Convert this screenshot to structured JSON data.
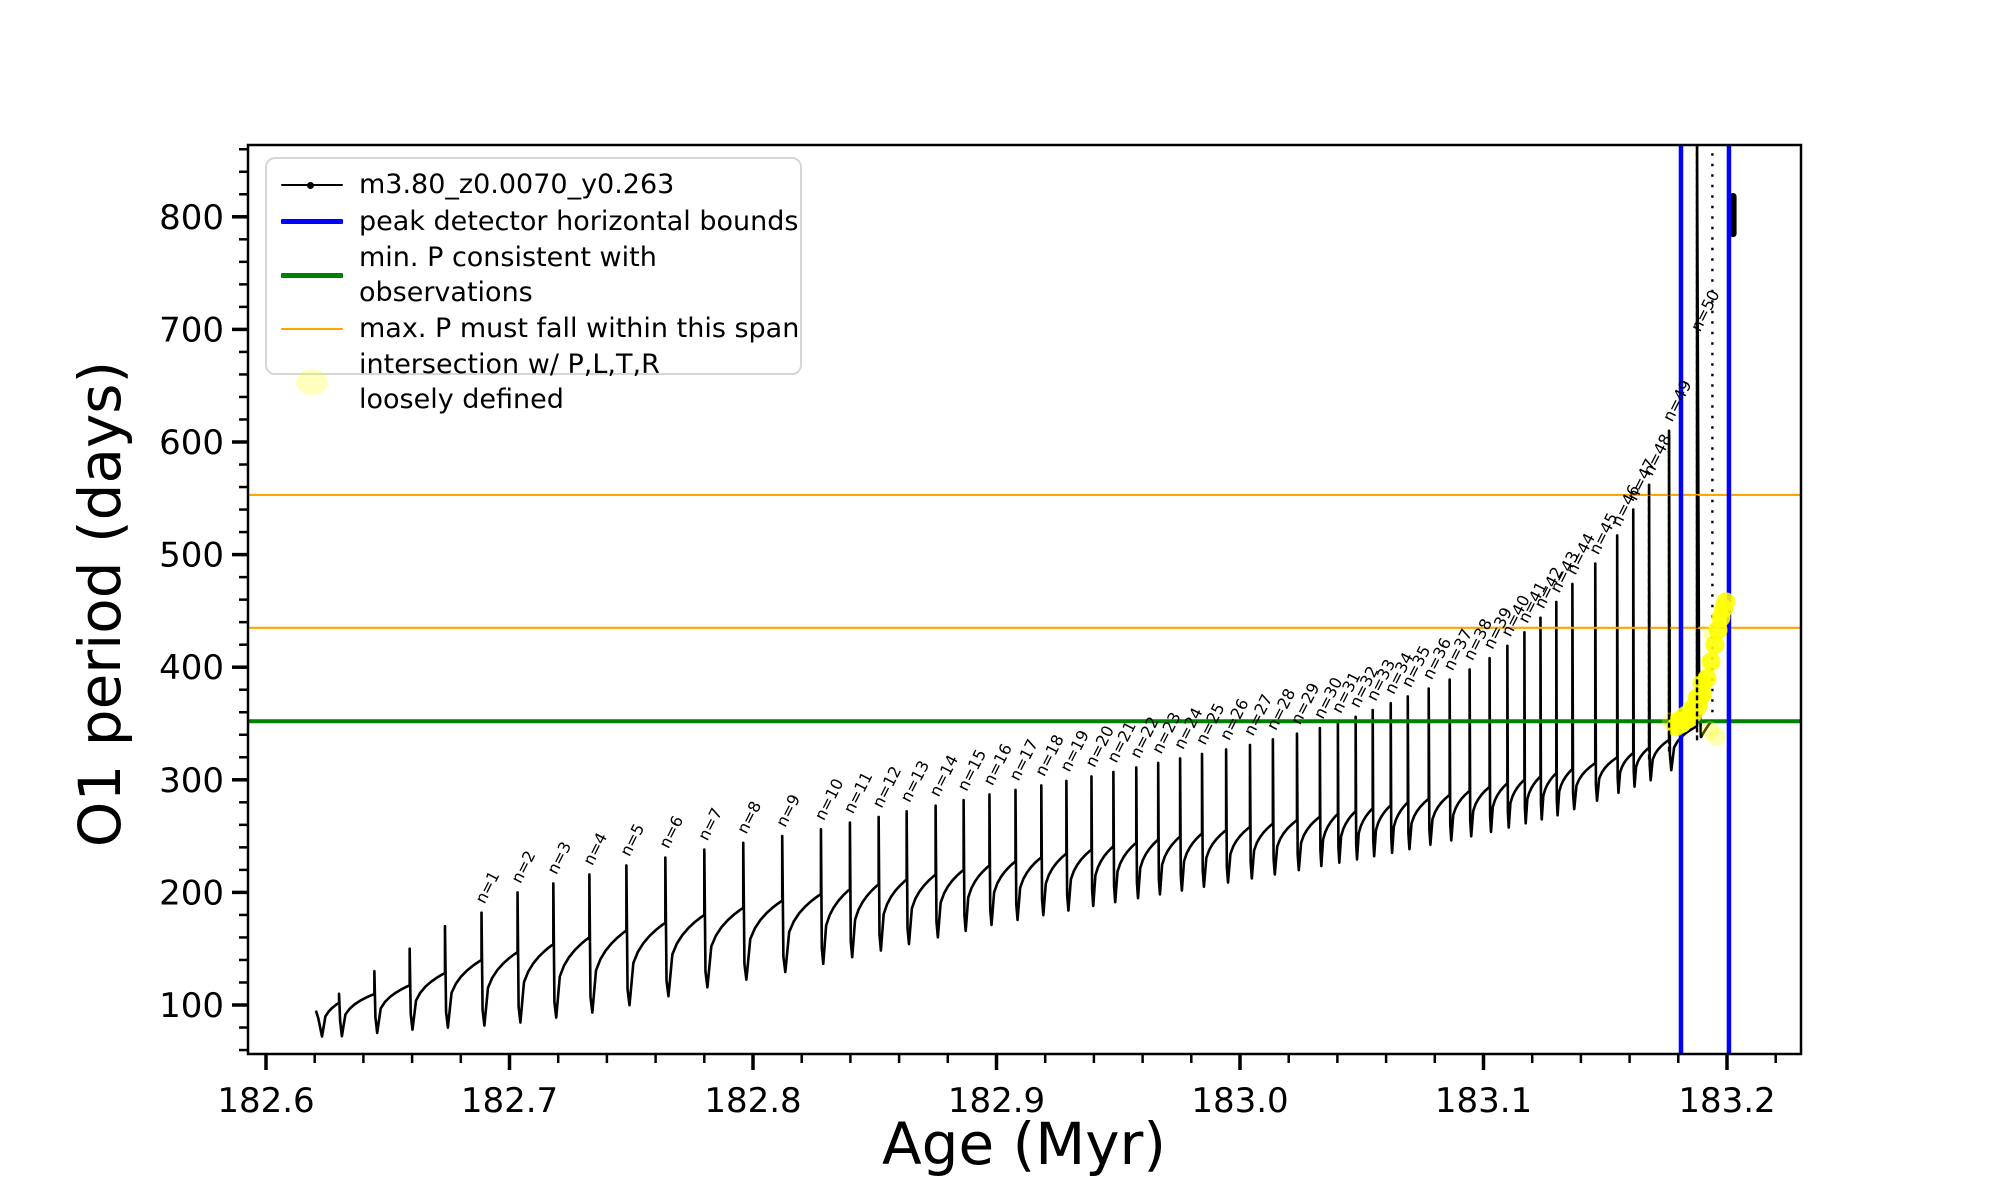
{
  "figure": {
    "xlabel": "Age (Myr)",
    "ylabel": "O1 period (days)",
    "background": "#ffffff"
  },
  "legend": {
    "items": [
      {
        "label": "m3.80_z0.0070_y0.263",
        "type": "line-dot",
        "color": "#000000",
        "lw": 2.5
      },
      {
        "label": "peak detector horizontal bounds",
        "type": "line",
        "color": "#0000ff",
        "lw": 5
      },
      {
        "label": "min. P consistent with observations",
        "type": "line",
        "color": "#008000",
        "lw": 5
      },
      {
        "label": "max. P must fall within this span",
        "type": "line",
        "color": "#ffa500",
        "lw": 2.5
      },
      {
        "label": "intersection w/ P,L,T,R\nloosely defined",
        "type": "dot",
        "color": "#ffff00",
        "alpha": 0.25
      }
    ]
  },
  "chart_data": {
    "type": "line",
    "title": "",
    "xlabel": "Age (Myr)",
    "ylabel": "O1 period (days)",
    "xlim": [
      182.5926,
      183.2304
    ],
    "ylim": [
      56.5,
      863.8
    ],
    "x_ticks": [
      182.6,
      182.7,
      182.8,
      182.9,
      183.0,
      183.1,
      183.2
    ],
    "x_minor_step": 0.02,
    "y_ticks": [
      100,
      200,
      300,
      400,
      500,
      600,
      700,
      800
    ],
    "y_minor_step": 20,
    "grid": false,
    "legend_position": "upper left",
    "series_label": "m3.80_z0.0070_y0.263",
    "series_color": "#000000",
    "h_lines": [
      {
        "name": "min_P_consistent_with_observations",
        "value": 352,
        "color": "#008000",
        "lw": 4
      },
      {
        "name": "max_P_span_lower",
        "value": 435,
        "color": "#ffa500",
        "lw": 2.2
      },
      {
        "name": "max_P_span_upper",
        "value": 553,
        "color": "#ffa500",
        "lw": 2.2
      }
    ],
    "v_lines": [
      {
        "name": "peak_detector_left_bound",
        "age": 183.1811,
        "color": "#0000ff",
        "lw": 4.5
      },
      {
        "name": "peak_detector_right_bound",
        "age": 183.2008,
        "color": "#0000ff",
        "lw": 4.5
      }
    ],
    "track_start": {
      "age": 182.6205,
      "period": 95
    },
    "pre_spikes": [
      {
        "age": 182.63,
        "peak": 110
      },
      {
        "age": 182.6445,
        "peak": 130
      },
      {
        "age": 182.659,
        "peak": 150
      },
      {
        "age": 182.6735,
        "peak": 170
      }
    ],
    "spikes": [
      {
        "n": 1,
        "age": 182.6885,
        "peak": 182
      },
      {
        "n": 2,
        "age": 182.7033,
        "peak": 200
      },
      {
        "n": 3,
        "age": 182.718,
        "peak": 208
      },
      {
        "n": 4,
        "age": 182.7328,
        "peak": 216
      },
      {
        "n": 5,
        "age": 182.748,
        "peak": 224
      },
      {
        "n": 6,
        "age": 182.764,
        "peak": 231
      },
      {
        "n": 7,
        "age": 182.78,
        "peak": 238
      },
      {
        "n": 8,
        "age": 182.796,
        "peak": 244
      },
      {
        "n": 9,
        "age": 182.812,
        "peak": 250
      },
      {
        "n": 10,
        "age": 182.8279,
        "peak": 256
      },
      {
        "n": 11,
        "age": 182.8398,
        "peak": 262
      },
      {
        "n": 12,
        "age": 182.8516,
        "peak": 267
      },
      {
        "n": 13,
        "age": 182.8631,
        "peak": 272
      },
      {
        "n": 14,
        "age": 182.875,
        "peak": 277
      },
      {
        "n": 15,
        "age": 182.8865,
        "peak": 282
      },
      {
        "n": 16,
        "age": 182.8971,
        "peak": 287
      },
      {
        "n": 17,
        "age": 182.9078,
        "peak": 291
      },
      {
        "n": 18,
        "age": 182.9184,
        "peak": 295
      },
      {
        "n": 19,
        "age": 182.9287,
        "peak": 299
      },
      {
        "n": 20,
        "age": 182.939,
        "peak": 303
      },
      {
        "n": 21,
        "age": 182.948,
        "peak": 307
      },
      {
        "n": 22,
        "age": 182.9574,
        "peak": 311
      },
      {
        "n": 23,
        "age": 182.9664,
        "peak": 315
      },
      {
        "n": 24,
        "age": 182.9754,
        "peak": 319
      },
      {
        "n": 25,
        "age": 182.9844,
        "peak": 323
      },
      {
        "n": 26,
        "age": 182.9943,
        "peak": 327
      },
      {
        "n": 27,
        "age": 183.0041,
        "peak": 331
      },
      {
        "n": 28,
        "age": 183.0135,
        "peak": 336
      },
      {
        "n": 29,
        "age": 183.0234,
        "peak": 341
      },
      {
        "n": 30,
        "age": 183.0328,
        "peak": 346
      },
      {
        "n": 31,
        "age": 183.0402,
        "peak": 351
      },
      {
        "n": 32,
        "age": 183.0475,
        "peak": 356
      },
      {
        "n": 33,
        "age": 183.0545,
        "peak": 362
      },
      {
        "n": 34,
        "age": 183.0619,
        "peak": 368
      },
      {
        "n": 35,
        "age": 183.0689,
        "peak": 374
      },
      {
        "n": 36,
        "age": 183.0775,
        "peak": 381
      },
      {
        "n": 37,
        "age": 183.0861,
        "peak": 389
      },
      {
        "n": 38,
        "age": 183.0943,
        "peak": 398
      },
      {
        "n": 39,
        "age": 183.1025,
        "peak": 408
      },
      {
        "n": 40,
        "age": 183.1098,
        "peak": 419
      },
      {
        "n": 41,
        "age": 183.1168,
        "peak": 431
      },
      {
        "n": 42,
        "age": 183.1234,
        "peak": 444
      },
      {
        "n": 43,
        "age": 183.1299,
        "peak": 458
      },
      {
        "n": 44,
        "age": 183.1365,
        "peak": 474
      },
      {
        "n": 45,
        "age": 183.1459,
        "peak": 492
      },
      {
        "n": 46,
        "age": 183.1549,
        "peak": 517
      },
      {
        "n": 47,
        "age": 183.1615,
        "peak": 540
      },
      {
        "n": 48,
        "age": 183.168,
        "peak": 562
      },
      {
        "n": 49,
        "age": 183.1762,
        "peak": 610
      },
      {
        "n": 50,
        "age": 183.1877,
        "peak": 865
      }
    ],
    "dip_envelope": [
      [
        182.62,
        70
      ],
      [
        182.66,
        78
      ],
      [
        182.7,
        83
      ],
      [
        182.74,
        95
      ],
      [
        182.78,
        115
      ],
      [
        182.82,
        132
      ],
      [
        182.86,
        152
      ],
      [
        182.9,
        172
      ],
      [
        182.94,
        188
      ],
      [
        182.98,
        203
      ],
      [
        183.02,
        218
      ],
      [
        183.06,
        234
      ],
      [
        183.1,
        252
      ],
      [
        183.13,
        268
      ],
      [
        183.16,
        292
      ],
      [
        183.175,
        305
      ],
      [
        183.185,
        320
      ],
      [
        183.194,
        340
      ]
    ],
    "plateau_envelope": [
      [
        182.63,
        102
      ],
      [
        182.66,
        118
      ],
      [
        182.6885,
        140
      ],
      [
        182.72,
        155
      ],
      [
        182.75,
        167
      ],
      [
        182.78,
        180
      ],
      [
        182.81,
        192
      ],
      [
        182.84,
        203
      ],
      [
        182.87,
        214
      ],
      [
        182.9,
        225
      ],
      [
        182.93,
        235
      ],
      [
        182.96,
        245
      ],
      [
        182.99,
        254
      ],
      [
        183.02,
        263
      ],
      [
        183.05,
        273
      ],
      [
        183.08,
        284
      ],
      [
        183.11,
        297
      ],
      [
        183.13,
        306
      ],
      [
        183.15,
        317
      ],
      [
        183.165,
        326
      ],
      [
        183.178,
        337
      ],
      [
        183.188,
        348
      ],
      [
        183.194,
        353
      ]
    ],
    "post_track": {
      "dotted_riser_age": 183.194,
      "dotted_riser_period_range": [
        360,
        860
      ],
      "end_cluster": {
        "age": 183.2025,
        "period_range": [
          785,
          818
        ]
      }
    },
    "intersection_region": {
      "age_range": [
        183.177,
        183.2008
      ],
      "period_range": [
        342,
        458
      ],
      "color": "#ffff00",
      "points": [
        [
          183.179,
          347
        ],
        [
          183.1815,
          350
        ],
        [
          183.184,
          354
        ],
        [
          183.1862,
          359
        ],
        [
          183.1882,
          366
        ],
        [
          183.19,
          376
        ],
        [
          183.1918,
          390
        ],
        [
          183.1934,
          405
        ],
        [
          183.195,
          420
        ],
        [
          183.1963,
          433
        ],
        [
          183.1975,
          444
        ],
        [
          183.1986,
          452
        ],
        [
          183.1995,
          458
        ],
        [
          183.18,
          352
        ],
        [
          183.1828,
          357
        ],
        [
          183.1855,
          363
        ],
        [
          183.1878,
          373
        ],
        [
          183.1897,
          386
        ]
      ],
      "pale_points": [
        [
          183.177,
          352
        ],
        [
          183.194,
          430
        ],
        [
          183.193,
          344
        ],
        [
          183.1958,
          338
        ]
      ]
    },
    "spike_label_prefix": "n=",
    "spike_label_fontsize": 16,
    "spike_label_rotation_deg": -63
  }
}
